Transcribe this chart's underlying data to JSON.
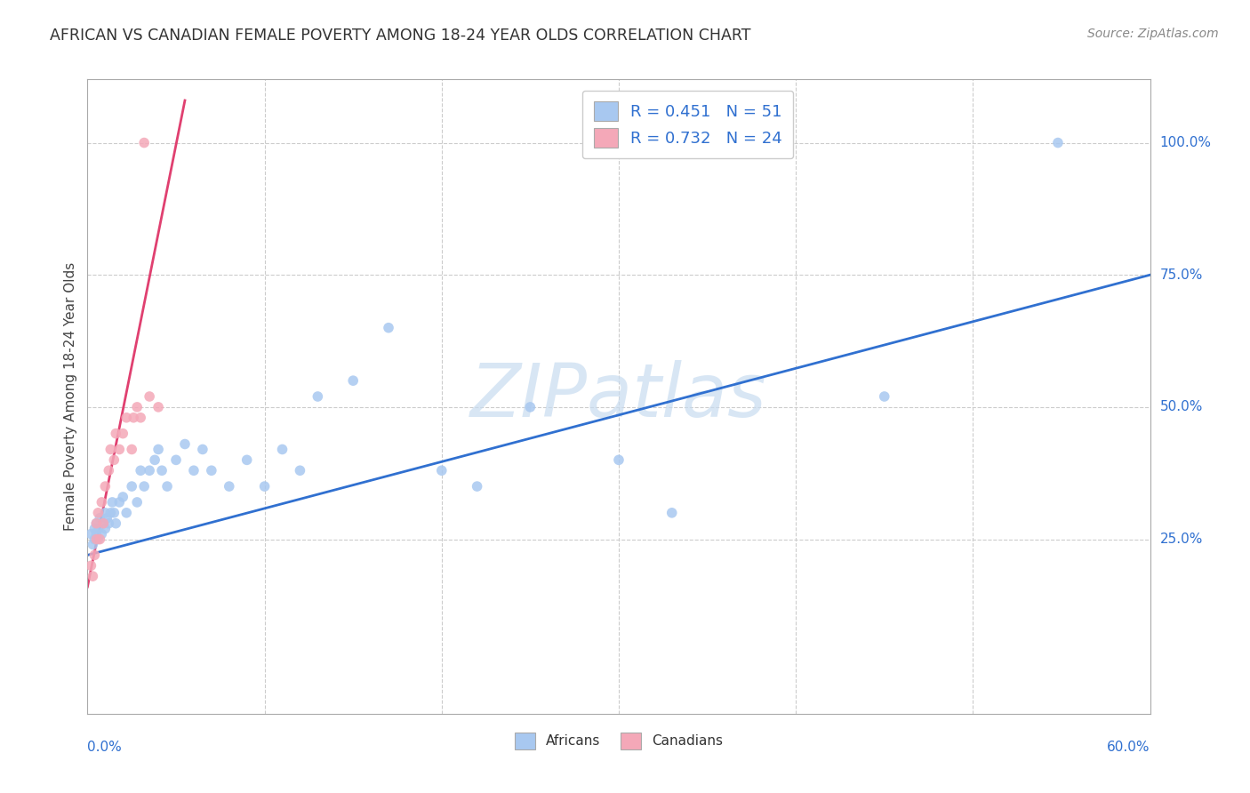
{
  "title": "AFRICAN VS CANADIAN FEMALE POVERTY AMONG 18-24 YEAR OLDS CORRELATION CHART",
  "source": "Source: ZipAtlas.com",
  "ylabel": "Female Poverty Among 18-24 Year Olds",
  "ytick_positions": [
    0.25,
    0.5,
    0.75,
    1.0
  ],
  "ytick_labels": [
    "25.0%",
    "50.0%",
    "75.0%",
    "100.0%"
  ],
  "xtick_left_label": "0.0%",
  "xtick_right_label": "60.0%",
  "watermark": "ZIPatlas",
  "legend_african_label": "R = 0.451   N = 51",
  "legend_canadian_label": "R = 0.732   N = 24",
  "africans_label": "Africans",
  "canadians_label": "Canadians",
  "african_color": "#a8c8f0",
  "canadian_color": "#f4a8b8",
  "african_line_color": "#3070d0",
  "canadian_line_color": "#e04070",
  "legend_text_color": "#3070d0",
  "axis_label_color": "#3070d0",
  "grid_color": "#cccccc",
  "title_color": "#333333",
  "source_color": "#888888",
  "watermark_color": "#c8dcf0",
  "xlim": [
    0.0,
    0.6
  ],
  "ylim": [
    -0.08,
    1.12
  ],
  "african_x": [
    0.002,
    0.003,
    0.004,
    0.004,
    0.005,
    0.005,
    0.006,
    0.006,
    0.007,
    0.008,
    0.009,
    0.01,
    0.01,
    0.011,
    0.012,
    0.013,
    0.014,
    0.015,
    0.016,
    0.018,
    0.02,
    0.022,
    0.025,
    0.028,
    0.03,
    0.032,
    0.035,
    0.038,
    0.04,
    0.042,
    0.045,
    0.05,
    0.055,
    0.06,
    0.065,
    0.07,
    0.08,
    0.09,
    0.1,
    0.11,
    0.12,
    0.13,
    0.15,
    0.17,
    0.2,
    0.22,
    0.25,
    0.3,
    0.33,
    0.45,
    0.548
  ],
  "african_y": [
    0.26,
    0.24,
    0.27,
    0.25,
    0.28,
    0.26,
    0.25,
    0.27,
    0.29,
    0.26,
    0.28,
    0.3,
    0.27,
    0.29,
    0.28,
    0.3,
    0.32,
    0.3,
    0.28,
    0.32,
    0.33,
    0.3,
    0.35,
    0.32,
    0.38,
    0.35,
    0.38,
    0.4,
    0.42,
    0.38,
    0.35,
    0.4,
    0.43,
    0.38,
    0.42,
    0.38,
    0.35,
    0.4,
    0.35,
    0.42,
    0.38,
    0.52,
    0.55,
    0.65,
    0.38,
    0.35,
    0.5,
    0.4,
    0.3,
    0.52,
    1.0
  ],
  "canadian_x": [
    0.002,
    0.003,
    0.004,
    0.005,
    0.005,
    0.006,
    0.007,
    0.008,
    0.009,
    0.01,
    0.012,
    0.013,
    0.015,
    0.016,
    0.018,
    0.02,
    0.022,
    0.025,
    0.026,
    0.028,
    0.03,
    0.032,
    0.035,
    0.04
  ],
  "canadian_y": [
    0.2,
    0.18,
    0.22,
    0.25,
    0.28,
    0.3,
    0.25,
    0.32,
    0.28,
    0.35,
    0.38,
    0.42,
    0.4,
    0.45,
    0.42,
    0.45,
    0.48,
    0.42,
    0.48,
    0.5,
    0.48,
    1.0,
    0.52,
    0.5
  ],
  "blue_line_x": [
    0.0,
    0.6
  ],
  "blue_line_y": [
    0.22,
    0.75
  ],
  "pink_line_x": [
    0.0,
    0.055
  ],
  "pink_line_y": [
    0.16,
    1.08
  ]
}
